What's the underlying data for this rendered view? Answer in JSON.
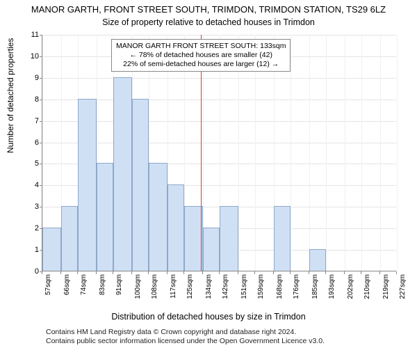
{
  "title": "MANOR GARTH, FRONT STREET SOUTH, TRIMDON, TRIMDON STATION, TS29 6LZ",
  "subtitle": "Size of property relative to detached houses in Trimdon",
  "xlabel": "Distribution of detached houses by size in Trimdon",
  "ylabel": "Number of detached properties",
  "chart": {
    "type": "histogram",
    "background_color": "#ffffff",
    "grid_color": "#e4e4e4",
    "axis_color": "#888888",
    "bar_color": "#cfe0f5",
    "bar_border": "#8fa8c8",
    "refline_color": "#d33a3a",
    "ylim": [
      0,
      11
    ],
    "ytick_step": 1,
    "x_values_sqm": [
      57,
      66,
      74,
      83,
      91,
      100,
      108,
      117,
      125,
      134,
      142,
      151,
      159,
      168,
      176,
      185,
      193,
      202,
      210,
      219,
      227
    ],
    "bar_heights": [
      2,
      3,
      8,
      5,
      9,
      8,
      5,
      4,
      3,
      2,
      3,
      0,
      0,
      3,
      0,
      1,
      0,
      0,
      0,
      0
    ],
    "reference_sqm": 133,
    "annotation": {
      "line1": "MANOR GARTH FRONT STREET SOUTH: 133sqm",
      "line2": "← 78% of detached houses are smaller (42)",
      "line3": "22% of semi-detached houses are larger (12) →"
    },
    "title_fontsize": 13,
    "label_fontsize": 12,
    "tick_fontsize": 10
  },
  "footer": {
    "line1": "Contains HM Land Registry data © Crown copyright and database right 2024.",
    "line2": "Contains public sector information licensed under the Open Government Licence v3.0."
  }
}
